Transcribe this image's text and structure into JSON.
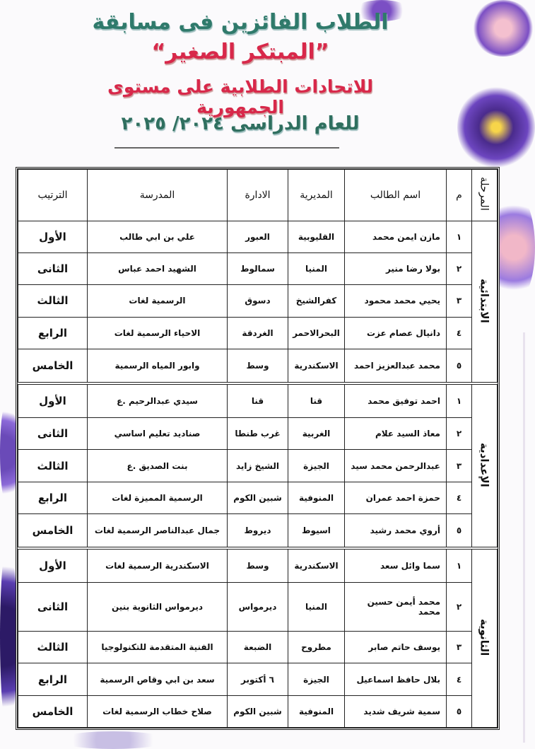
{
  "header": {
    "line1": "الطلاب الفائزين فى مسابقة",
    "line2": "”المبتكر الصغير“",
    "line3": "للاتحادات الطلابية على مستوى الجمهورية",
    "line4": "للعام الدراسى ٢٠٢٤/ ٢٠٢٥"
  },
  "table": {
    "columns": {
      "stage": "المرحلة",
      "num": "م",
      "name": "اسم الطالب",
      "directorate": "المديرية",
      "admin": "الادارة",
      "school": "المدرسة",
      "rank": "الترتيب"
    },
    "sections": [
      {
        "stage": "الابتدائية",
        "rows": [
          {
            "num": "١",
            "name": "مازن ايمن محمد",
            "directorate": "القليوبية",
            "admin": "العبور",
            "school": "علي بن ابي طالب",
            "rank": "الأول"
          },
          {
            "num": "٢",
            "name": "بولا رضا منير",
            "directorate": "المنيا",
            "admin": "سمالوط",
            "school": "الشهيد احمد عباس",
            "rank": "الثانى"
          },
          {
            "num": "٣",
            "name": "يحيي محمد محمود",
            "directorate": "كفرالشيخ",
            "admin": "دسوق",
            "school": "الرسمية لغات",
            "rank": "الثالث"
          },
          {
            "num": "٤",
            "name": "دانيال عصام عزت",
            "directorate": "البحرالاحمر",
            "admin": "الغردقة",
            "school": "الاحياء الرسمية لغات",
            "rank": "الرابع"
          },
          {
            "num": "٥",
            "name": "محمد عبدالعزيز احمد",
            "directorate": "الاسكندرية",
            "admin": "وسط",
            "school": "وابور المياه الرسمية",
            "rank": "الخامس"
          }
        ]
      },
      {
        "stage": "الإعدادية",
        "rows": [
          {
            "num": "١",
            "name": "احمد توفيق محمد",
            "directorate": "قنا",
            "admin": "قنا",
            "school": "سيدي عبدالرحيم .ع",
            "rank": "الأول"
          },
          {
            "num": "٢",
            "name": "معاذ السيد علام",
            "directorate": "الغربية",
            "admin": "غرب طنطا",
            "school": "صناديد تعليم اساسي",
            "rank": "الثانى"
          },
          {
            "num": "٣",
            "name": "عبدالرحمن محمد سيد",
            "directorate": "الجيزة",
            "admin": "الشيخ زايد",
            "school": "بنت الصديق .ع",
            "rank": "الثالث"
          },
          {
            "num": "٤",
            "name": "حمزة احمد عمران",
            "directorate": "المنوفية",
            "admin": "شبين الكوم",
            "school": "الرسمية المميزة لغات",
            "rank": "الرابع"
          },
          {
            "num": "٥",
            "name": "أروي محمد رشيد",
            "directorate": "اسيوط",
            "admin": "ديروط",
            "school": "جمال عبدالناصر الرسمية لغات",
            "rank": "الخامس"
          }
        ]
      },
      {
        "stage": "الثانوية",
        "rows": [
          {
            "num": "١",
            "name": "سما وائل سعد",
            "directorate": "الاسكندرية",
            "admin": "وسط",
            "school": "الاسكندرية الرسمية لغات",
            "rank": "الأول"
          },
          {
            "num": "٢",
            "name": "محمد أيمن حسين محمد",
            "directorate": "المنيا",
            "admin": "ديرمواس",
            "school": "ديرمواس الثانوية بنين",
            "rank": "الثانى"
          },
          {
            "num": "٣",
            "name": "يوسف حاتم صابر",
            "directorate": "مطروح",
            "admin": "الضبعة",
            "school": "الفنية المتقدمة للتكنولوجيا",
            "rank": "الثالث"
          },
          {
            "num": "٤",
            "name": "بلال حافظ اسماعيل",
            "directorate": "الجيزة",
            "admin": "٦ أكتوبر",
            "school": "سعد بن ابي وقاص الرسمية",
            "rank": "الرابع"
          },
          {
            "num": "٥",
            "name": "سمية شريف شديد",
            "directorate": "المنوفية",
            "admin": "شبين الكوم",
            "school": "صلاح خطاب الرسمية لغات",
            "rank": "الخامس"
          }
        ]
      }
    ]
  }
}
